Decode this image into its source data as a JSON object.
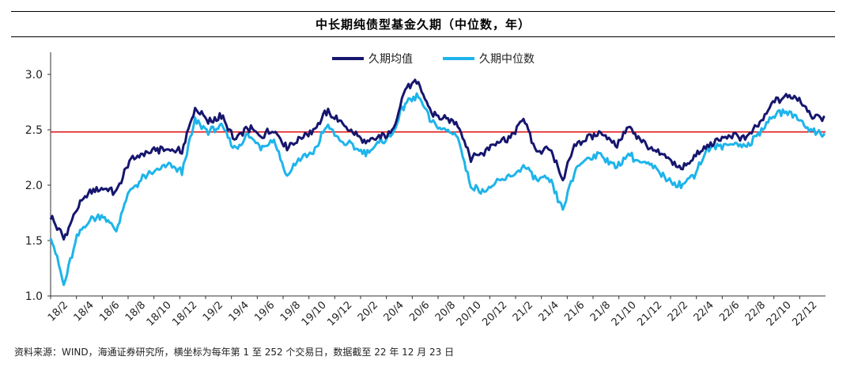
{
  "page_title": "中长期纯债型基金久期（中位数，年）",
  "source_note": "资料来源：WIND，海通证券研究所，横坐标为每年第 1 至 252 个交易日，数据截至 22 年 12 月 23 日",
  "colors": {
    "mean": "#16166e",
    "median": "#1eb4ea",
    "reference": "#e01010"
  },
  "chart_data": {
    "type": "line",
    "title": "中长期纯债型基金久期（中位数，年）",
    "ylim": [
      1.0,
      3.2
    ],
    "yticks": [
      1.0,
      1.5,
      2.0,
      2.5,
      3.0
    ],
    "ytick_labels": [
      "1.0",
      "1.5",
      "2.0",
      "2.5",
      "3.0"
    ],
    "x_labels": [
      "18/2",
      "18/4",
      "18/6",
      "18/8",
      "18/10",
      "18/12",
      "19/2",
      "19/4",
      "19/6",
      "19/8",
      "19/10",
      "19/12",
      "20/2",
      "20/4",
      "20/6",
      "20/8",
      "20/10",
      "20/12",
      "21/2",
      "21/4",
      "21/6",
      "21/8",
      "21/10",
      "21/12",
      "22/2",
      "22/4",
      "22/6",
      "22/8",
      "22/10",
      "22/12"
    ],
    "reference_line": 2.48,
    "legend_position": "top-center",
    "series": [
      {
        "name": "久期均值",
        "x": [
          "18/2",
          "18/3",
          "18/4",
          "18/5",
          "18/6",
          "18/7",
          "18/8",
          "18/9",
          "18/10",
          "18/11",
          "18/12",
          "19/1",
          "19/2",
          "19/3",
          "19/4",
          "19/5",
          "19/6",
          "19/7",
          "19/8",
          "19/9",
          "19/10",
          "19/11",
          "19/12",
          "20/1",
          "20/2",
          "20/3",
          "20/4",
          "20/5",
          "20/6",
          "20/7",
          "20/8",
          "20/9",
          "20/10",
          "20/11",
          "20/12",
          "21/1",
          "21/2",
          "21/3",
          "21/4",
          "21/5",
          "21/6",
          "21/7",
          "21/8",
          "21/9",
          "21/10",
          "21/11",
          "21/12",
          "22/1",
          "22/2",
          "22/3",
          "22/4",
          "22/5",
          "22/6",
          "22/7",
          "22/8",
          "22/9",
          "22/10",
          "22/11",
          "22/12",
          "22/12E"
        ],
        "values": [
          1.72,
          1.52,
          1.78,
          1.95,
          1.97,
          1.93,
          2.22,
          2.28,
          2.32,
          2.33,
          2.3,
          2.7,
          2.57,
          2.62,
          2.4,
          2.52,
          2.45,
          2.5,
          2.35,
          2.42,
          2.5,
          2.66,
          2.58,
          2.48,
          2.38,
          2.43,
          2.48,
          2.88,
          2.92,
          2.65,
          2.6,
          2.55,
          2.25,
          2.3,
          2.4,
          2.43,
          2.6,
          2.3,
          2.33,
          2.05,
          2.38,
          2.43,
          2.48,
          2.35,
          2.52,
          2.4,
          2.3,
          2.25,
          2.15,
          2.25,
          2.35,
          2.42,
          2.45,
          2.43,
          2.55,
          2.75,
          2.8,
          2.78,
          2.62,
          2.61
        ]
      },
      {
        "name": "久期中位数",
        "x": [
          "18/2",
          "18/3",
          "18/4",
          "18/5",
          "18/6",
          "18/7",
          "18/8",
          "18/9",
          "18/10",
          "18/11",
          "18/12",
          "19/1",
          "19/2",
          "19/3",
          "19/4",
          "19/5",
          "19/6",
          "19/7",
          "19/8",
          "19/9",
          "19/10",
          "19/11",
          "19/12",
          "20/1",
          "20/2",
          "20/3",
          "20/4",
          "20/5",
          "20/6",
          "20/7",
          "20/8",
          "20/9",
          "20/10",
          "20/11",
          "20/12",
          "21/1",
          "21/2",
          "21/3",
          "21/4",
          "21/5",
          "21/6",
          "21/7",
          "21/8",
          "21/9",
          "21/10",
          "21/11",
          "21/12",
          "22/1",
          "22/2",
          "22/3",
          "22/4",
          "22/5",
          "22/6",
          "22/7",
          "22/8",
          "22/9",
          "22/10",
          "22/11",
          "22/12",
          "22/12E"
        ],
        "values": [
          1.55,
          1.1,
          1.52,
          1.7,
          1.72,
          1.6,
          1.95,
          2.06,
          2.13,
          2.18,
          2.12,
          2.58,
          2.48,
          2.53,
          2.32,
          2.45,
          2.35,
          2.42,
          2.08,
          2.25,
          2.28,
          2.55,
          2.4,
          2.35,
          2.3,
          2.38,
          2.45,
          2.75,
          2.8,
          2.57,
          2.5,
          2.45,
          1.98,
          1.95,
          2.02,
          2.08,
          2.17,
          2.05,
          2.05,
          1.78,
          2.15,
          2.25,
          2.28,
          2.15,
          2.28,
          2.2,
          2.15,
          2.05,
          2.0,
          2.1,
          2.32,
          2.35,
          2.38,
          2.35,
          2.48,
          2.62,
          2.67,
          2.6,
          2.48,
          2.47
        ]
      }
    ]
  }
}
